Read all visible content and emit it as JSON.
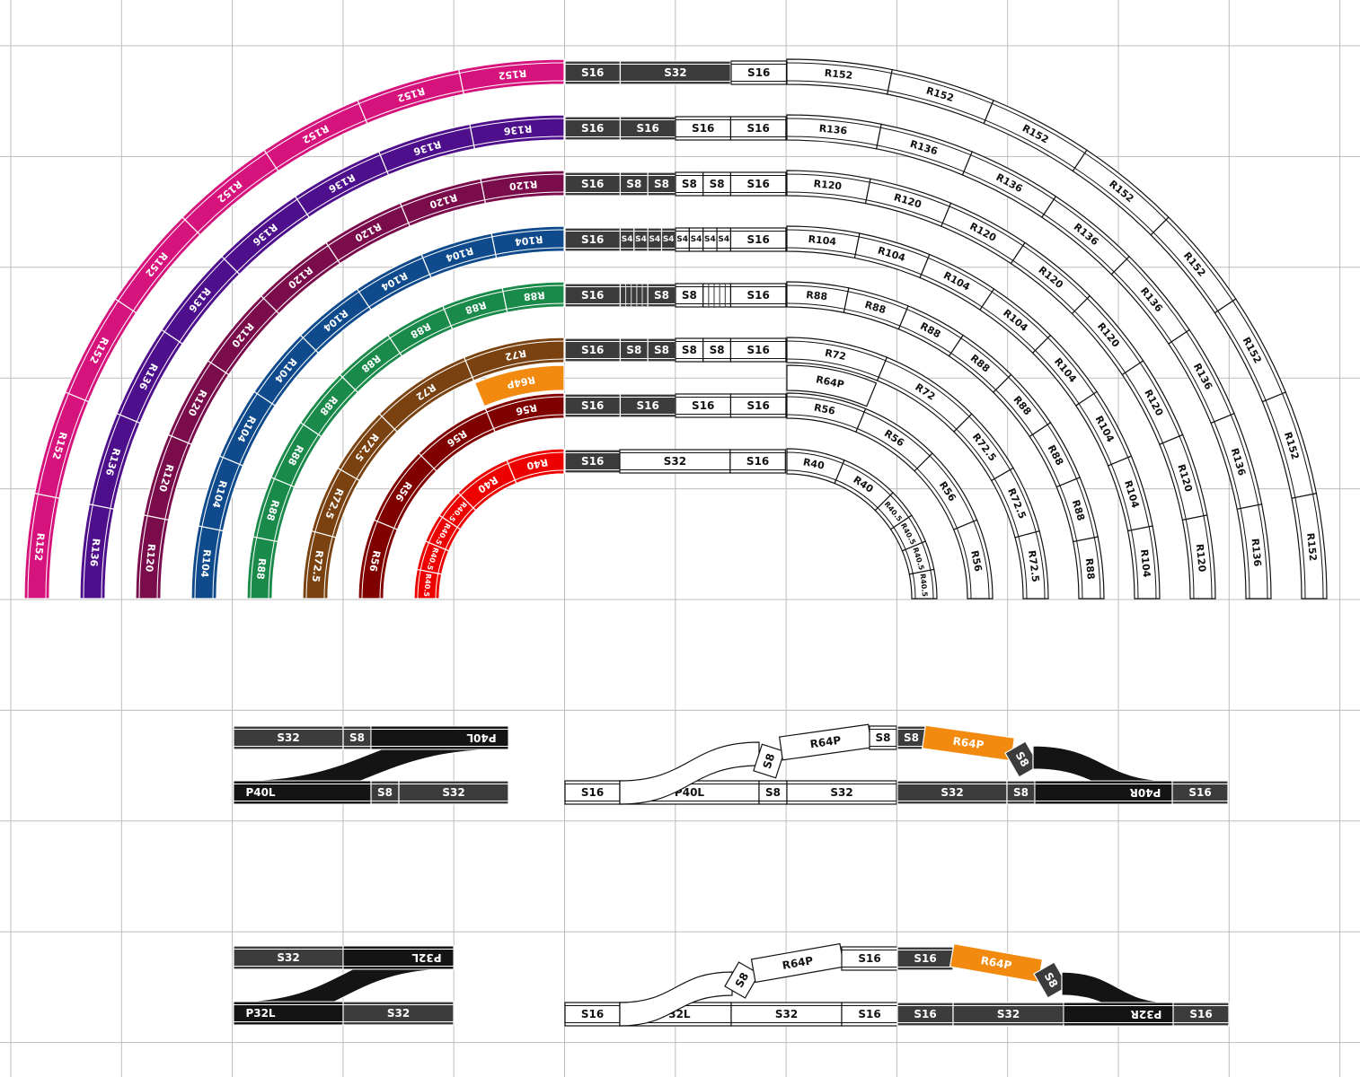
{
  "colors": {
    "r152": "#d6127c",
    "r136": "#4e0f8c",
    "r120": "#7a0c4c",
    "r104": "#0f4b8c",
    "r88": "#1a8a4a",
    "r72": "#7a4210",
    "r64p": "#f28a10",
    "r56": "#800000",
    "r40": "#ee0000",
    "straight_dark": "#3c3c3c",
    "point_black": "#141414",
    "grid": "#bcbcbc"
  },
  "left_arcs": [
    {
      "key": "r152",
      "pieces": [
        "R152",
        "R152",
        "R152",
        "R152",
        "R152",
        "R152",
        "R152",
        "R152"
      ]
    },
    {
      "key": "r136",
      "pieces": [
        "R136",
        "R136",
        "R136",
        "R136",
        "R136",
        "R136",
        "R136",
        "R136"
      ]
    },
    {
      "key": "r120",
      "pieces": [
        "R120",
        "R120",
        "R120",
        "R120",
        "R120",
        "R120",
        "R120",
        "R120"
      ]
    },
    {
      "key": "r104",
      "pieces": [
        "R104",
        "R104",
        "R104",
        "R104",
        "R104",
        "R104",
        "R104",
        "R104"
      ]
    },
    {
      "key": "r88",
      "pieces": [
        "R88",
        "R88",
        "R88",
        "R88",
        "R88",
        "R88",
        "R88",
        "R88"
      ]
    },
    {
      "key": "r72",
      "pieces": [
        "R72",
        "R72",
        "R72.5",
        "R72.5",
        "R72.5"
      ]
    },
    {
      "key": "r56",
      "pieces": [
        "R56",
        "R56",
        "R56",
        "R56"
      ]
    },
    {
      "key": "r40",
      "pieces": [
        "R40",
        "R40",
        "R40.5",
        "R40.5",
        "R40.5",
        "R40.5"
      ]
    }
  ],
  "r64p_label": "R64P",
  "center_rows": [
    {
      "dark": [
        "S16",
        "S32"
      ],
      "white": [
        "S16"
      ]
    },
    {
      "dark": [
        "S16",
        "S16"
      ],
      "white": [
        "S16",
        "S16"
      ]
    },
    {
      "dark": [
        "S16",
        "S8",
        "S8"
      ],
      "white": [
        "S8",
        "S8",
        "S16"
      ]
    },
    {
      "dark": [
        "S16",
        "S4",
        "S4",
        "S4",
        "S4"
      ],
      "white": [
        "S4",
        "S4",
        "S4",
        "S4",
        "S16"
      ]
    },
    {
      "dark": [
        "S16",
        "",
        "S8"
      ],
      "white": [
        "S8",
        "",
        "S16"
      ]
    },
    {
      "dark": [
        "S16",
        "S8",
        "S8"
      ],
      "white": [
        "S8",
        "S8",
        "S16"
      ]
    },
    {
      "dark": [
        "S16",
        "S16"
      ],
      "white": [
        "S16",
        "S16"
      ]
    },
    {
      "dark": [
        "S16"
      ],
      "white": [
        "S32",
        "S16"
      ]
    }
  ],
  "right_arcs": [
    {
      "pieces": [
        "R152",
        "R152",
        "R152",
        "R152",
        "R152",
        "R152",
        "R152",
        "R152"
      ]
    },
    {
      "pieces": [
        "R136",
        "R136",
        "R136",
        "R136",
        "R136",
        "R136",
        "R136",
        "R136"
      ]
    },
    {
      "pieces": [
        "R120",
        "R120",
        "R120",
        "R120",
        "R120",
        "R120",
        "R120",
        "R120"
      ]
    },
    {
      "pieces": [
        "R104",
        "R104",
        "R104",
        "R104",
        "R104",
        "R104",
        "R104",
        "R104"
      ]
    },
    {
      "pieces": [
        "R88",
        "R88",
        "R88",
        "R88",
        "R88",
        "R88",
        "R88",
        "R88"
      ]
    },
    {
      "pieces": [
        "R72",
        "R72",
        "R72.5",
        "R72.5",
        "R72.5"
      ]
    },
    {
      "pieces": [
        "R56",
        "R56",
        "R56",
        "R56"
      ]
    },
    {
      "pieces": [
        "R40",
        "R40",
        "R40.5",
        "R40.5",
        "R40.5",
        "R40.5"
      ]
    }
  ],
  "points": {
    "p40l": {
      "top": [
        "S32",
        "S8",
        "P40L"
      ],
      "bottom": [
        "P40L",
        "S8",
        "S32"
      ]
    },
    "p32l": {
      "top": [
        "S32",
        "P32L"
      ],
      "bottom": [
        "P32L",
        "S32"
      ]
    }
  },
  "crossover_40": {
    "base_left": [
      "S16",
      "P40L",
      "S8",
      "S32"
    ],
    "raised_left": [
      "S8",
      "R64P",
      "S8"
    ],
    "raised_right": [
      "S8",
      "R64P",
      "S8"
    ],
    "base_right": [
      "S32",
      "S8",
      "P40R",
      "S16"
    ]
  },
  "crossover_32": {
    "base_left": [
      "S16",
      "P32L",
      "S32",
      "S16"
    ],
    "raised_left": [
      "S8",
      "R64P",
      "S16"
    ],
    "raised_right": [
      "S16",
      "R64P",
      "S8"
    ],
    "base_right": [
      "S16",
      "S32",
      "P32R",
      "S16"
    ]
  }
}
